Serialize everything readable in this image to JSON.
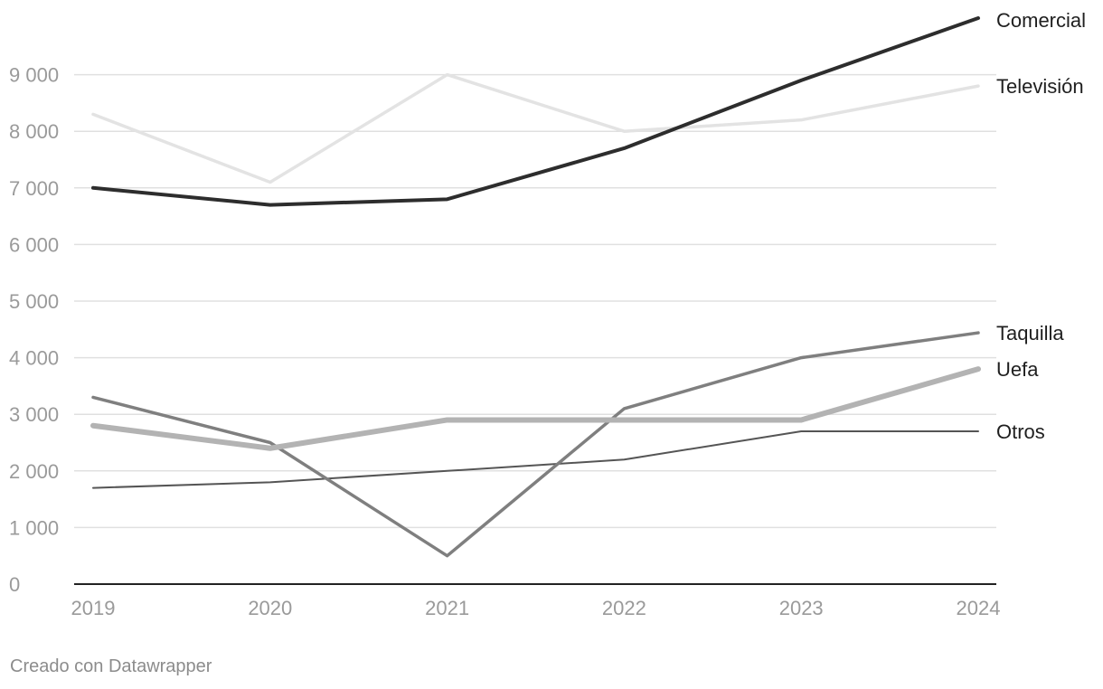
{
  "chart_data": {
    "type": "line",
    "x": [
      "2019",
      "2020",
      "2021",
      "2022",
      "2023",
      "2024"
    ],
    "ylim": [
      0,
      10000
    ],
    "yticks": [
      0,
      1000,
      2000,
      3000,
      4000,
      5000,
      6000,
      7000,
      8000,
      9000
    ],
    "ytick_labels": [
      "0",
      "1 000",
      "2 000",
      "3 000",
      "4 000",
      "5 000",
      "6 000",
      "7 000",
      "8 000",
      "9 000"
    ],
    "grid": true,
    "legend": "direct labels at right end of lines",
    "series": [
      {
        "name": "Televisión",
        "color": "#e3e3e3",
        "values": [
          8300,
          7100,
          9000,
          8000,
          8200,
          8800
        ]
      },
      {
        "name": "Otros",
        "color": "#555555",
        "values": [
          1700,
          1800,
          2000,
          2200,
          2700,
          2700
        ]
      },
      {
        "name": "Taquilla",
        "color": "#7f7f7f",
        "values": [
          3300,
          2500,
          500,
          3100,
          4000,
          4440
        ]
      },
      {
        "name": "Uefa",
        "color": "#b3b3b3",
        "values": [
          2800,
          2400,
          2900,
          2900,
          2900,
          3800
        ]
      },
      {
        "name": "Comercial",
        "color": "#2d2d2d",
        "values": [
          7000,
          6700,
          6800,
          7700,
          8900,
          10000
        ]
      }
    ]
  },
  "footer": {
    "credit": "Creado con Datawrapper"
  }
}
